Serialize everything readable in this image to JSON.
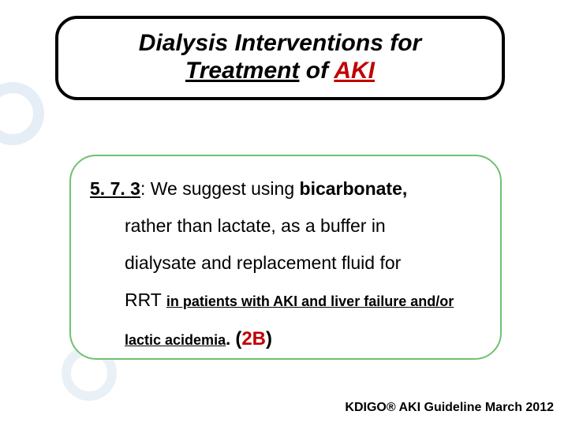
{
  "title": {
    "line1": "Dialysis Interventions for",
    "treatment": "Treatment",
    "of": " of ",
    "aki": "AKI"
  },
  "body": {
    "secnum": "5. 7. 3",
    "colon": ": ",
    "t1": "We suggest using ",
    "bicarb": "bicarbonate",
    "comma": ",",
    "t2": "rather than lactate, as a buffer in",
    "t3": "dialysate and replacement fluid for",
    "t4a": "RRT ",
    "cond1": "in patients with AKI and liver failure and/or",
    "cond2": "lactic acidemia",
    "dot": ". ",
    "paren_open": "(",
    "grade": "2B",
    "paren_close": ")"
  },
  "credit": "KDIGO® AKI Guideline March 2012",
  "style": {
    "title_border": "#000000",
    "body_border": "#70c170",
    "accent_red": "#c00000",
    "circle_color": "#cfe0ee",
    "bg": "#ffffff"
  }
}
